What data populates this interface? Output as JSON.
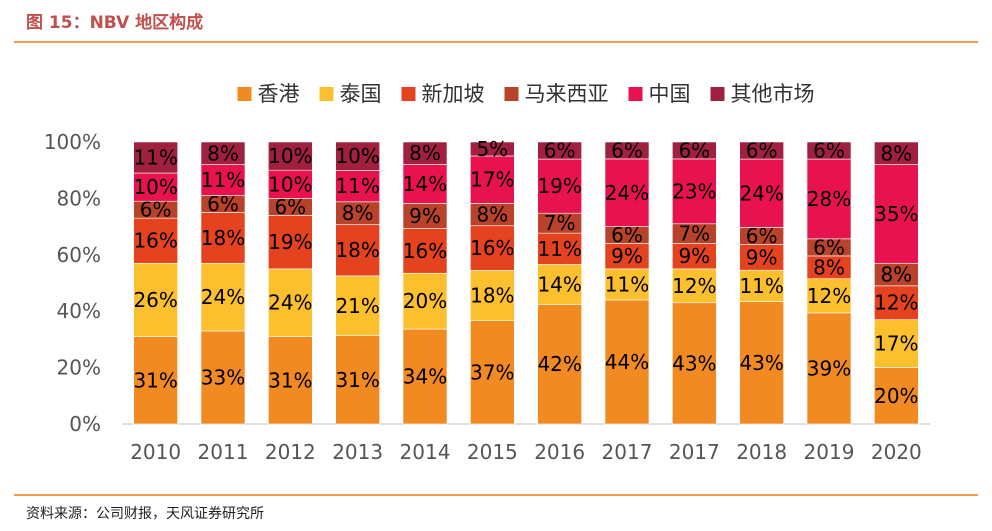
{
  "figure": {
    "title": "图 15：NBV 地区构成",
    "source": "资料来源：公司财报，天风证券研究所"
  },
  "chart_data": {
    "type": "bar",
    "stacked": true,
    "percent": true,
    "categories": [
      "2010",
      "2011",
      "2012",
      "2013",
      "2014",
      "2015",
      "2016",
      "2017",
      "2017",
      "2018",
      "2019",
      "2020"
    ],
    "ylim": [
      0,
      100
    ],
    "yticks": [
      "0%",
      "20%",
      "40%",
      "60%",
      "80%",
      "100%"
    ],
    "legend_position": "top",
    "series": [
      {
        "name": "香港",
        "color": "#f28a22",
        "values": [
          31,
          33,
          31,
          31,
          34,
          37,
          42,
          44,
          43,
          43,
          39,
          20
        ]
      },
      {
        "name": "泰国",
        "color": "#fcc02f",
        "values": [
          26,
          24,
          24,
          21,
          20,
          18,
          14,
          11,
          12,
          11,
          12,
          17
        ]
      },
      {
        "name": "新加坡",
        "color": "#e5421f",
        "values": [
          16,
          18,
          19,
          18,
          16,
          16,
          11,
          9,
          9,
          9,
          8,
          12
        ]
      },
      {
        "name": "马来西亚",
        "color": "#b8432a",
        "values": [
          6,
          6,
          6,
          8,
          9,
          8,
          7,
          6,
          7,
          6,
          6,
          8
        ]
      },
      {
        "name": "中国",
        "color": "#e8124e",
        "values": [
          10,
          11,
          10,
          11,
          14,
          17,
          19,
          24,
          23,
          24,
          28,
          35
        ]
      },
      {
        "name": "其他市场",
        "color": "#a0203f",
        "values": [
          11,
          8,
          10,
          10,
          8,
          5,
          6,
          6,
          6,
          6,
          6,
          8
        ]
      }
    ]
  }
}
